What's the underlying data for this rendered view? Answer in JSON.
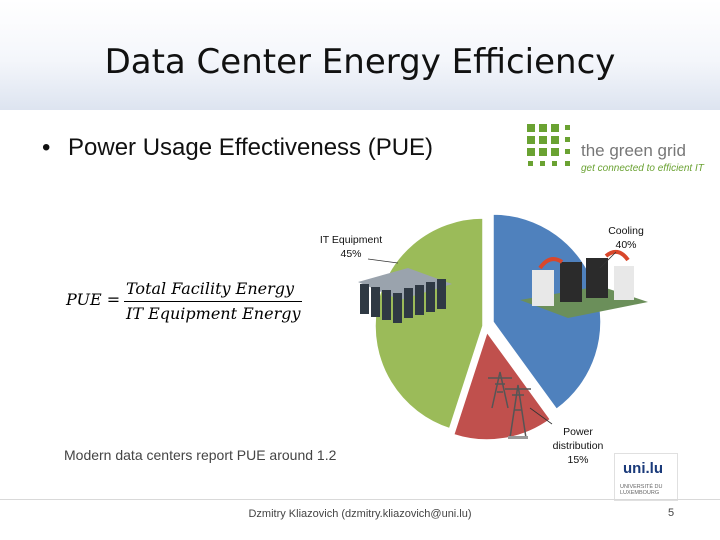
{
  "slide": {
    "title": "Data Center Energy Efficiency",
    "bullet": "Power Usage Effectiveness (PUE)",
    "bullet_marker": "•",
    "note": "Modern data centers report PUE around 1.2",
    "footer": "Dzmitry Kliazovich (dzmitry.kliazovich@uni.lu)",
    "page_number": "5"
  },
  "formula": {
    "lhs": "PUE =",
    "numerator": "Total Facility Energy",
    "denominator": "IT Equipment Energy"
  },
  "logos": {
    "green_grid": {
      "name": "the green grid",
      "tagline": "get connected to efficient IT"
    },
    "university": {
      "name": "uni.lu",
      "subtitle": "UNIVERSITÉ DU LUXEMBOURG"
    }
  },
  "chart_data": {
    "type": "pie",
    "labels": [
      {
        "name": "Cooling",
        "value_label": "40%"
      },
      {
        "name": "Power distribution",
        "value_label": "15%"
      },
      {
        "name": "IT Equipment",
        "value_label": "45%"
      }
    ],
    "values": [
      40,
      15,
      45
    ],
    "colors": [
      "#4f81bd",
      "#c0504d",
      "#9bbb59"
    ]
  },
  "colors": {
    "green_grid_green": "#6aa232",
    "title_band": "#dde4f0"
  }
}
